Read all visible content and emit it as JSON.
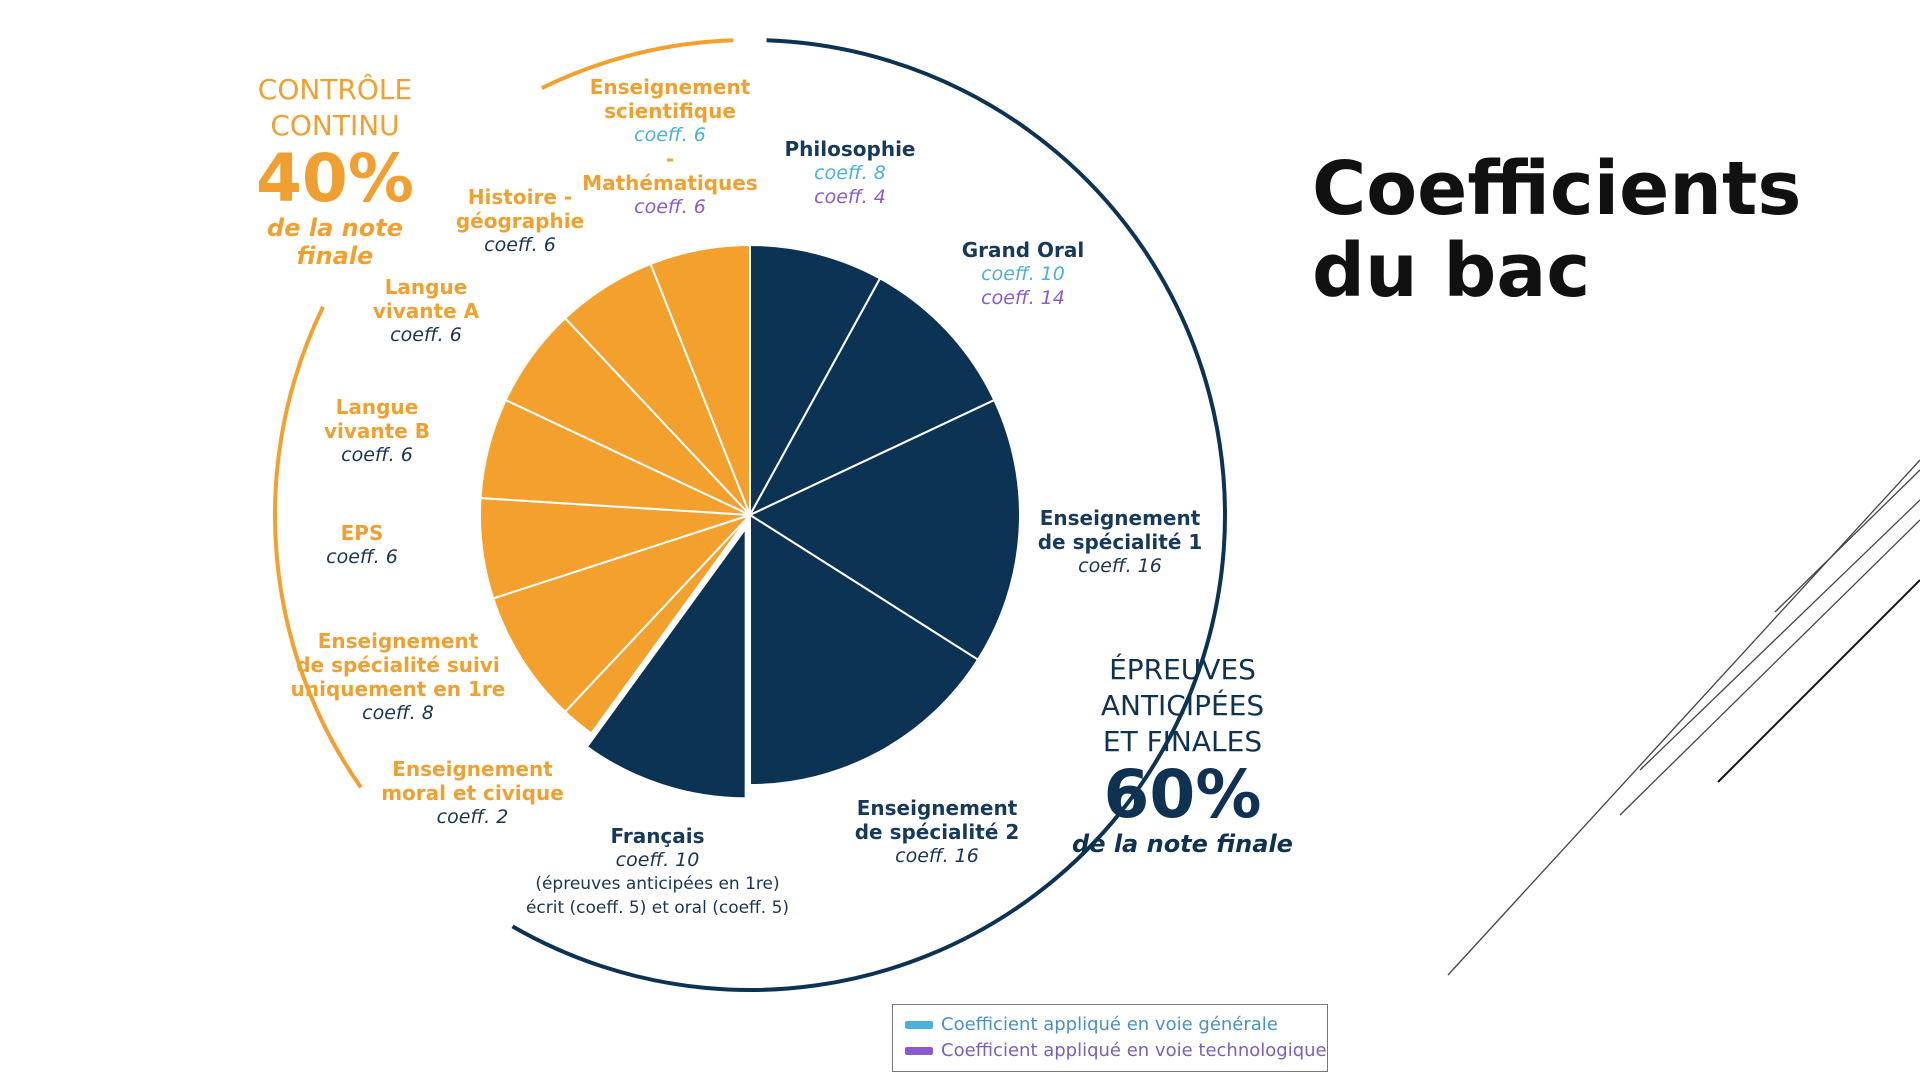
{
  "title": "Coefficients du bac",
  "colors": {
    "orange": "#f3a02d",
    "navy": "#0c3354",
    "blue": "#4db0d8",
    "purple": "#8a5bd0"
  },
  "groups": {
    "controle": {
      "name_line1": "CONTRÔLE",
      "name_line2": "CONTINU",
      "pct": "40%",
      "sub": "de la note finale"
    },
    "epreuves": {
      "name_line1": "ÉPREUVES",
      "name_line2": "ANTICIPÉES",
      "name_line3": "ET FINALES",
      "pct": "60%",
      "sub": "de la note finale"
    }
  },
  "labels": {
    "ens_sci": {
      "name1": "Enseignement",
      "name2": "scientifique",
      "coeff": "coeff. 6",
      "dash": "-",
      "name3": "Mathématiques",
      "coeff2": "coeff. 6"
    },
    "philo": {
      "name": "Philosophie",
      "coeff": "coeff. 8",
      "coeff2": "coeff. 4"
    },
    "grand_oral": {
      "name": "Grand Oral",
      "coeff": "coeff. 10",
      "coeff2": "coeff. 14"
    },
    "spe1": {
      "name1": "Enseignement",
      "name2": "de spécialité 1",
      "coeff": "coeff. 16"
    },
    "spe2": {
      "name1": "Enseignement",
      "name2": "de spécialité 2",
      "coeff": "coeff. 16"
    },
    "francais": {
      "name": "Français",
      "coeff": "coeff. 10",
      "note1": "(épreuves anticipées en 1re)",
      "note2": "écrit (coeff. 5) et oral (coeff. 5)"
    },
    "emc": {
      "name1": "Enseignement",
      "name2": "moral et civique",
      "coeff": "coeff. 2"
    },
    "spe_1re": {
      "name1": "Enseignement",
      "name2": "de spécialité suivi",
      "name3": "uniquement en 1re",
      "coeff": "coeff. 8"
    },
    "eps": {
      "name": "EPS",
      "coeff": "coeff. 6"
    },
    "lvb": {
      "name1": "Langue",
      "name2": "vivante B",
      "coeff": "coeff. 6"
    },
    "lva": {
      "name1": "Langue",
      "name2": "vivante A",
      "coeff": "coeff. 6"
    },
    "hg": {
      "name1": "Histoire -",
      "name2": "géographie",
      "coeff": "coeff. 6"
    }
  },
  "legend": {
    "generale": "Coefficient appliqué en voie générale",
    "technologique": "Coefficient appliqué en voie technologique"
  },
  "chart_data": {
    "type": "pie",
    "title": "Coefficients du bac",
    "series": [
      {
        "name": "Philosophie",
        "value": 8,
        "group": "epreuves"
      },
      {
        "name": "Grand Oral",
        "value": 10,
        "group": "epreuves"
      },
      {
        "name": "Enseignement de spécialité 1",
        "value": 16,
        "group": "epreuves"
      },
      {
        "name": "Enseignement de spécialité 2",
        "value": 16,
        "group": "epreuves"
      },
      {
        "name": "Français",
        "value": 10,
        "group": "epreuves"
      },
      {
        "name": "Enseignement moral et civique",
        "value": 2,
        "group": "controle"
      },
      {
        "name": "Enseignement de spécialité suivi uniquement en 1re",
        "value": 8,
        "group": "controle"
      },
      {
        "name": "EPS",
        "value": 6,
        "group": "controle"
      },
      {
        "name": "Langue vivante B",
        "value": 6,
        "group": "controle"
      },
      {
        "name": "Langue vivante A",
        "value": 6,
        "group": "controle"
      },
      {
        "name": "Histoire - géographie",
        "value": 6,
        "group": "controle"
      },
      {
        "name": "Enseignement scientifique",
        "value": 6,
        "group": "controle"
      }
    ],
    "group_shares": {
      "controle": 40,
      "epreuves": 60
    }
  }
}
